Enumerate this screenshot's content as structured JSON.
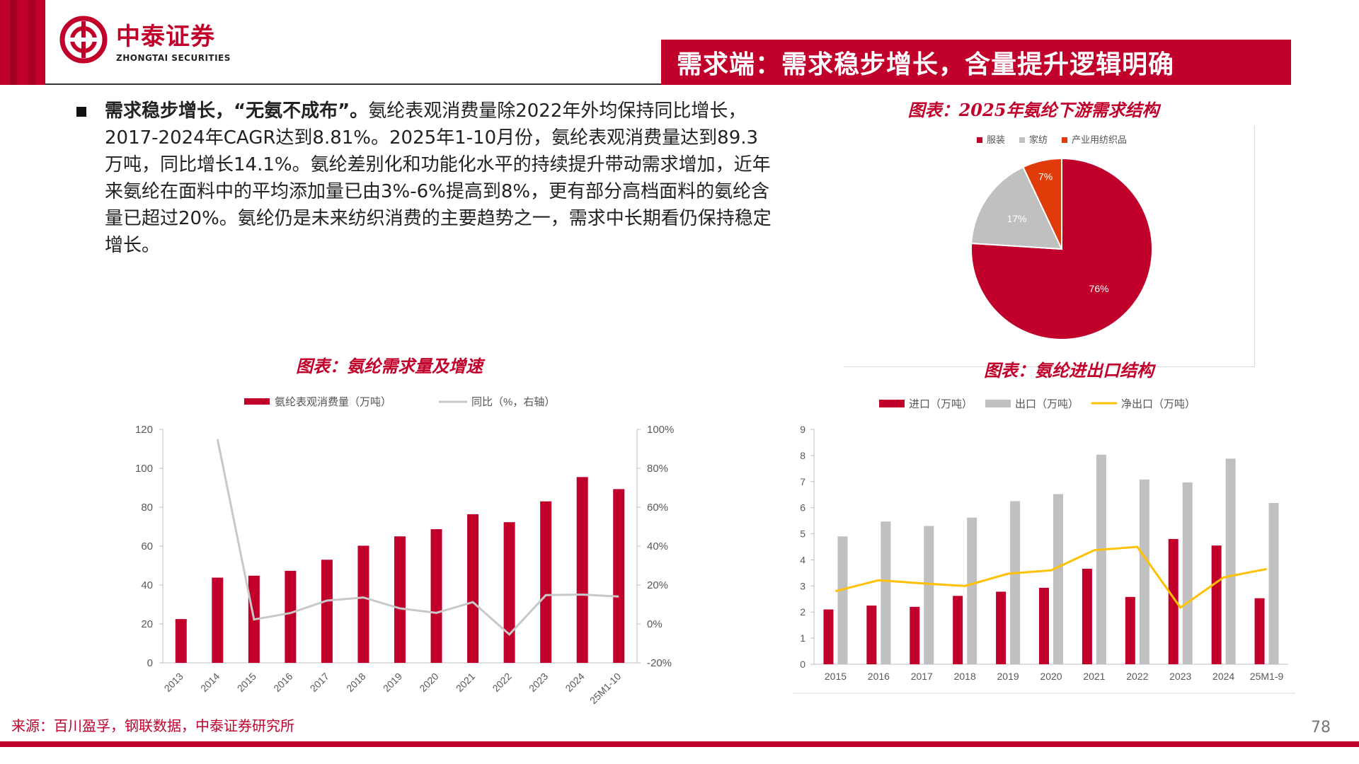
{
  "header": {
    "logo_cn": "中泰证券",
    "logo_en": "ZHONGTAI SECURITIES",
    "title": "需求端：需求稳步增长，含量提升逻辑明确"
  },
  "bullet": {
    "lead": "需求稳步增长，“无氨不成布”。",
    "body": "氨纶表观消费量除2022年外均保持同比增长，2017-2024年CAGR达到8.81%。2025年1-10月份，氨纶表观消费量达到89.3万吨，同比增长14.1%。氨纶差别化和功能化水平的持续提升带动需求增加，近年来氨纶在面料中的平均添加量已由3%-6%提高到8%，更有部分高档面料的氨纶含量已超过20%。氨纶仍是未来纺织消费的主要趋势之一，需求中长期看仍保持稳定增长。"
  },
  "source": "来源：百川盈孚，钢联数据，中泰证券研究所",
  "page_number": "78",
  "colors": {
    "brand_red": "#c0002b",
    "grey": "#c0c0c0",
    "orange_red": "#e03c0a",
    "yellow": "#ffc000"
  },
  "chart_data": [
    {
      "type": "pie",
      "title": "图表：2025年氨纶下游需求结构",
      "legend": [
        "服装",
        "家纺",
        "产业用纺织品"
      ],
      "legend_position": "top",
      "values": [
        76,
        17,
        7
      ],
      "labels": [
        "76%",
        "17%",
        "7%"
      ],
      "colors": [
        "#c0002b",
        "#c0c0c0",
        "#e03c0a"
      ]
    },
    {
      "type": "bar",
      "title": "图表：氨纶需求量及增速",
      "legend_position": "top",
      "categories": [
        "2013",
        "2014",
        "2015",
        "2016",
        "2017",
        "2018",
        "2019",
        "2020",
        "2021",
        "2022",
        "2023",
        "2024",
        "25M1-10"
      ],
      "series": [
        {
          "name": "氨纶表观消费量（万吨）",
          "type": "bar",
          "axis": "left",
          "color": "#c0002b",
          "values": [
            22.5,
            43.8,
            44.8,
            47.3,
            53,
            60.2,
            65,
            68.7,
            76.4,
            72.3,
            83,
            95.5,
            89.3
          ]
        },
        {
          "name": "同比（%，右轴）",
          "type": "line",
          "axis": "right",
          "color": "#c8c8c8",
          "values": [
            null,
            95,
            2.3,
            5.6,
            12,
            13.6,
            8,
            5.7,
            11.2,
            -5.4,
            14.8,
            15.1,
            14.1
          ]
        }
      ],
      "y_left": {
        "min": 0,
        "max": 120,
        "ticks": [
          "0",
          "20",
          "40",
          "60",
          "80",
          "100",
          "120"
        ]
      },
      "y_right": {
        "min": -20,
        "max": 100,
        "ticks": [
          "-20%",
          "0%",
          "20%",
          "40%",
          "60%",
          "80%",
          "100%"
        ]
      },
      "grid": false
    },
    {
      "type": "bar",
      "title": "图表：氨纶进出口结构",
      "legend_position": "top",
      "categories": [
        "2015",
        "2016",
        "2017",
        "2018",
        "2019",
        "2020",
        "2021",
        "2022",
        "2023",
        "2024",
        "25M1-9"
      ],
      "series": [
        {
          "name": "进口（万吨）",
          "type": "bar",
          "color": "#c0002b",
          "values": [
            2.1,
            2.25,
            2.2,
            2.62,
            2.78,
            2.93,
            3.66,
            2.58,
            4.8,
            4.55,
            2.53
          ]
        },
        {
          "name": "出口（万吨）",
          "type": "bar",
          "color": "#c0c0c0",
          "values": [
            4.9,
            5.47,
            5.3,
            5.62,
            6.25,
            6.52,
            8.03,
            7.08,
            6.97,
            7.88,
            6.18
          ]
        },
        {
          "name": "净出口（万吨）",
          "type": "line",
          "color": "#ffc000",
          "values": [
            2.8,
            3.22,
            3.1,
            3.0,
            3.47,
            3.6,
            4.37,
            4.5,
            2.17,
            3.33,
            3.65
          ]
        }
      ],
      "y": {
        "min": 0,
        "max": 9,
        "ticks": [
          "0",
          "1",
          "2",
          "3",
          "4",
          "5",
          "6",
          "7",
          "8",
          "9"
        ]
      },
      "grid": false
    }
  ]
}
